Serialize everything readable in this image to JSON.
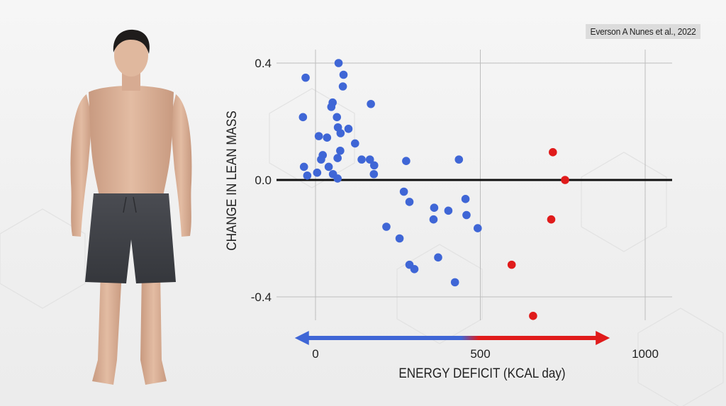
{
  "citation": "Everson A Nunes et al., 2022",
  "colors": {
    "blue": "#3f66d6",
    "red": "#e01b1b",
    "grid": "#bdbdbd",
    "zero_line": "#111111"
  },
  "chart_data": {
    "type": "scatter",
    "title": "",
    "xlabel": "ENERGY DEFICIT (KCAL day)",
    "ylabel": "CHANGE IN LEAN MASS",
    "xlim": [
      -60,
      1090
    ],
    "ylim": [
      -0.48,
      0.44
    ],
    "x_ticks": [
      {
        "value": 0,
        "label": "0"
      },
      {
        "value": 500,
        "label": "500"
      },
      {
        "value": 1000,
        "label": "1000"
      }
    ],
    "y_ticks": [
      {
        "value": 0.4,
        "label": "0.4"
      },
      {
        "value": 0.0,
        "label": "0.0"
      },
      {
        "value": -0.4,
        "label": "-0.4"
      }
    ],
    "grid": true,
    "arrow": {
      "from": -50,
      "to": 880,
      "split": 500
    },
    "series": [
      {
        "color": "blue",
        "points": [
          {
            "x": 70,
            "y": 0.4
          },
          {
            "x": -30,
            "y": 0.35
          },
          {
            "x": 85,
            "y": 0.36
          },
          {
            "x": 83,
            "y": 0.32
          },
          {
            "x": 52,
            "y": 0.265
          },
          {
            "x": 48,
            "y": 0.25
          },
          {
            "x": 168,
            "y": 0.26
          },
          {
            "x": -38,
            "y": 0.215
          },
          {
            "x": 65,
            "y": 0.215
          },
          {
            "x": 68,
            "y": 0.18
          },
          {
            "x": 100,
            "y": 0.175
          },
          {
            "x": 76,
            "y": 0.16
          },
          {
            "x": 10,
            "y": 0.15
          },
          {
            "x": 35,
            "y": 0.145
          },
          {
            "x": 120,
            "y": 0.125
          },
          {
            "x": 75,
            "y": 0.1
          },
          {
            "x": 22,
            "y": 0.085
          },
          {
            "x": 67,
            "y": 0.075
          },
          {
            "x": 17,
            "y": 0.07
          },
          {
            "x": 140,
            "y": 0.07
          },
          {
            "x": 165,
            "y": 0.07
          },
          {
            "x": 178,
            "y": 0.05
          },
          {
            "x": 40,
            "y": 0.045
          },
          {
            "x": -35,
            "y": 0.045
          },
          {
            "x": 5,
            "y": 0.025
          },
          {
            "x": 53,
            "y": 0.02
          },
          {
            "x": 177,
            "y": 0.02
          },
          {
            "x": -25,
            "y": 0.015
          },
          {
            "x": 67,
            "y": 0.005
          },
          {
            "x": 275,
            "y": 0.065
          },
          {
            "x": 435,
            "y": 0.07
          },
          {
            "x": 268,
            "y": -0.04
          },
          {
            "x": 285,
            "y": -0.075
          },
          {
            "x": 455,
            "y": -0.065
          },
          {
            "x": 360,
            "y": -0.095
          },
          {
            "x": 403,
            "y": -0.105
          },
          {
            "x": 458,
            "y": -0.12
          },
          {
            "x": 358,
            "y": -0.135
          },
          {
            "x": 215,
            "y": -0.16
          },
          {
            "x": 492,
            "y": -0.165
          },
          {
            "x": 255,
            "y": -0.2
          },
          {
            "x": 372,
            "y": -0.265
          },
          {
            "x": 285,
            "y": -0.29
          },
          {
            "x": 300,
            "y": -0.305
          },
          {
            "x": 423,
            "y": -0.35
          }
        ]
      },
      {
        "color": "red",
        "points": [
          {
            "x": 720,
            "y": 0.095
          },
          {
            "x": 757,
            "y": 0.0
          },
          {
            "x": 715,
            "y": -0.135
          },
          {
            "x": 595,
            "y": -0.29
          },
          {
            "x": 660,
            "y": -0.465
          }
        ]
      }
    ]
  }
}
